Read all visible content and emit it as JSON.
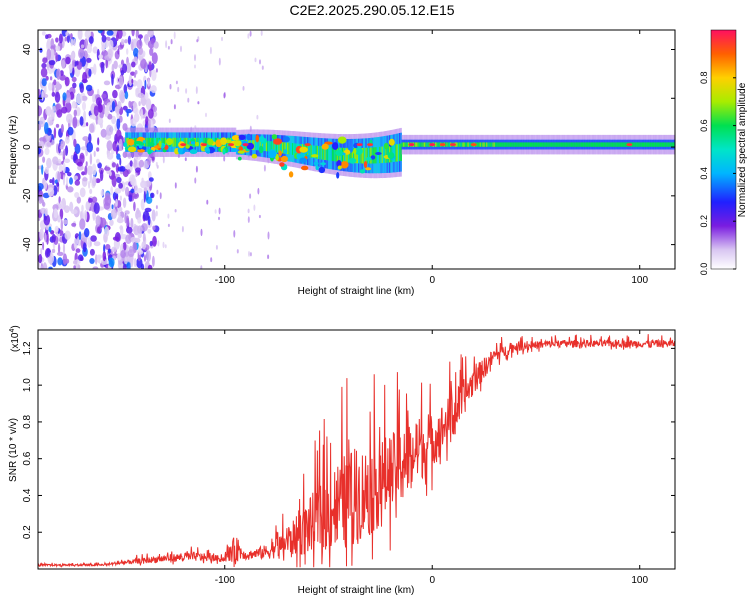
{
  "title": "C2E2.2025.290.05.12.E15",
  "colors": {
    "line": "#e8302b",
    "axis": "#000000",
    "background": "#ffffff"
  },
  "chart_data": [
    {
      "type": "heatmap",
      "name": "spectrogram",
      "xlabel": "Height of straight line (km)",
      "ylabel": "Frequency (Hz)",
      "xlim": [
        -190,
        117
      ],
      "ylim": [
        -50,
        48
      ],
      "x_ticks": [
        -100,
        0,
        100
      ],
      "y_ticks": [
        -40,
        -20,
        0,
        20,
        40
      ],
      "x_tick_labels": [
        "-100",
        "0",
        "100"
      ],
      "y_tick_labels": [
        "-40",
        "-20",
        "0",
        "20",
        "40"
      ],
      "colorbar": {
        "label": "Normalized spectral amplitude",
        "range": [
          0,
          1
        ],
        "ticks": [
          0.0,
          0.2,
          0.4,
          0.6,
          0.8
        ],
        "tick_labels": [
          "0.0",
          "0.2",
          "0.4",
          "0.6",
          "0.8"
        ]
      },
      "description_bands": [
        {
          "x_from": -190,
          "x_to": -133,
          "kind": "scatter-noise",
          "level": 0.18
        },
        {
          "x_from": -148,
          "x_to": -15,
          "kind": "band",
          "center": 2,
          "width": 8,
          "level": 0.55
        },
        {
          "x_from": -15,
          "x_to": 117,
          "kind": "band",
          "center": 1,
          "width": 4,
          "level": 0.5
        }
      ]
    },
    {
      "type": "line",
      "name": "snr",
      "xlabel": "Height of straight line (km)",
      "ylabel": "SNR (10 * v/v)",
      "y_scale_label": "(x10",
      "y_scale_exp": "4",
      "y_scale_close": ")",
      "xlim": [
        -190,
        117
      ],
      "ylim": [
        0,
        1.3
      ],
      "x_ticks": [
        -100,
        0,
        100
      ],
      "y_ticks": [
        0.2,
        0.4,
        0.6,
        0.8,
        1.0,
        1.2
      ],
      "x_tick_labels": [
        "-100",
        "0",
        "100"
      ],
      "y_tick_labels": [
        "0.2",
        "0.4",
        "0.6",
        "0.8",
        "1.0",
        "1.2"
      ],
      "envelope": {
        "x": [
          -190,
          -160,
          -130,
          -115,
          -100,
          -95,
          -90,
          -80,
          -70,
          -60,
          -50,
          -40,
          -30,
          -20,
          -10,
          0,
          10,
          20,
          30,
          40,
          60,
          80,
          100,
          117
        ],
        "base": [
          0.02,
          0.02,
          0.05,
          0.06,
          0.05,
          0.09,
          0.07,
          0.08,
          0.12,
          0.18,
          0.25,
          0.3,
          0.35,
          0.45,
          0.55,
          0.65,
          0.8,
          1.0,
          1.15,
          1.2,
          1.22,
          1.22,
          1.22,
          1.22
        ],
        "swing": [
          0.01,
          0.01,
          0.04,
          0.05,
          0.03,
          0.15,
          0.04,
          0.08,
          0.15,
          0.3,
          0.45,
          0.55,
          0.5,
          0.45,
          0.35,
          0.3,
          0.25,
          0.15,
          0.08,
          0.05,
          0.04,
          0.04,
          0.04,
          0.04
        ]
      }
    }
  ]
}
